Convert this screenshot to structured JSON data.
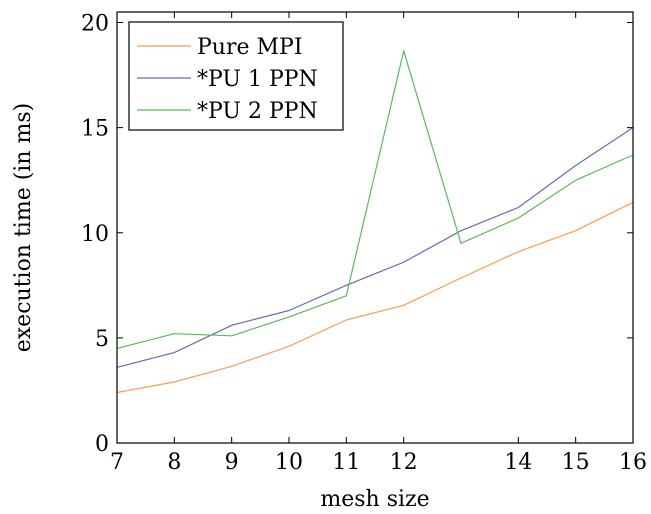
{
  "chart_data": {
    "type": "line",
    "title": "",
    "xlabel": "mesh size",
    "ylabel": "execution time (in ms)",
    "xlim": [
      7,
      16
    ],
    "ylim": [
      0,
      20.5
    ],
    "xticks": [
      7,
      8,
      9,
      10,
      11,
      12,
      14,
      15,
      16
    ],
    "xtick_labels": [
      "7",
      "8",
      "9",
      "10",
      "11",
      "12",
      "14",
      "15",
      "16"
    ],
    "yticks": [
      0,
      5,
      10,
      15,
      20
    ],
    "ytick_labels": [
      "0",
      "5",
      "10",
      "15",
      "20"
    ],
    "grid": false,
    "legend_position": "top-left",
    "series": [
      {
        "name": "Pure MPI",
        "color": "#ff9a52",
        "x": [
          7,
          8,
          9,
          10,
          11,
          12,
          13,
          14,
          15,
          16
        ],
        "y": [
          2.4,
          2.9,
          3.65,
          4.6,
          5.85,
          6.55,
          7.85,
          9.1,
          10.1,
          11.45
        ]
      },
      {
        "name": "*PU 1 PPN",
        "color": "#6a6ab2",
        "x": [
          7,
          8,
          9,
          10,
          11,
          12,
          13,
          14,
          15,
          16
        ],
        "y": [
          3.6,
          4.3,
          5.6,
          6.3,
          7.5,
          8.6,
          10.1,
          11.2,
          13.2,
          15.0
        ]
      },
      {
        "name": "*PU 2 PPN",
        "color": "#5cba5c",
        "x": [
          7,
          8,
          9,
          10,
          11,
          12,
          13,
          14,
          15,
          16
        ],
        "y": [
          4.5,
          5.2,
          5.1,
          6.0,
          7.0,
          18.65,
          9.5,
          10.7,
          12.5,
          13.7
        ]
      }
    ]
  }
}
